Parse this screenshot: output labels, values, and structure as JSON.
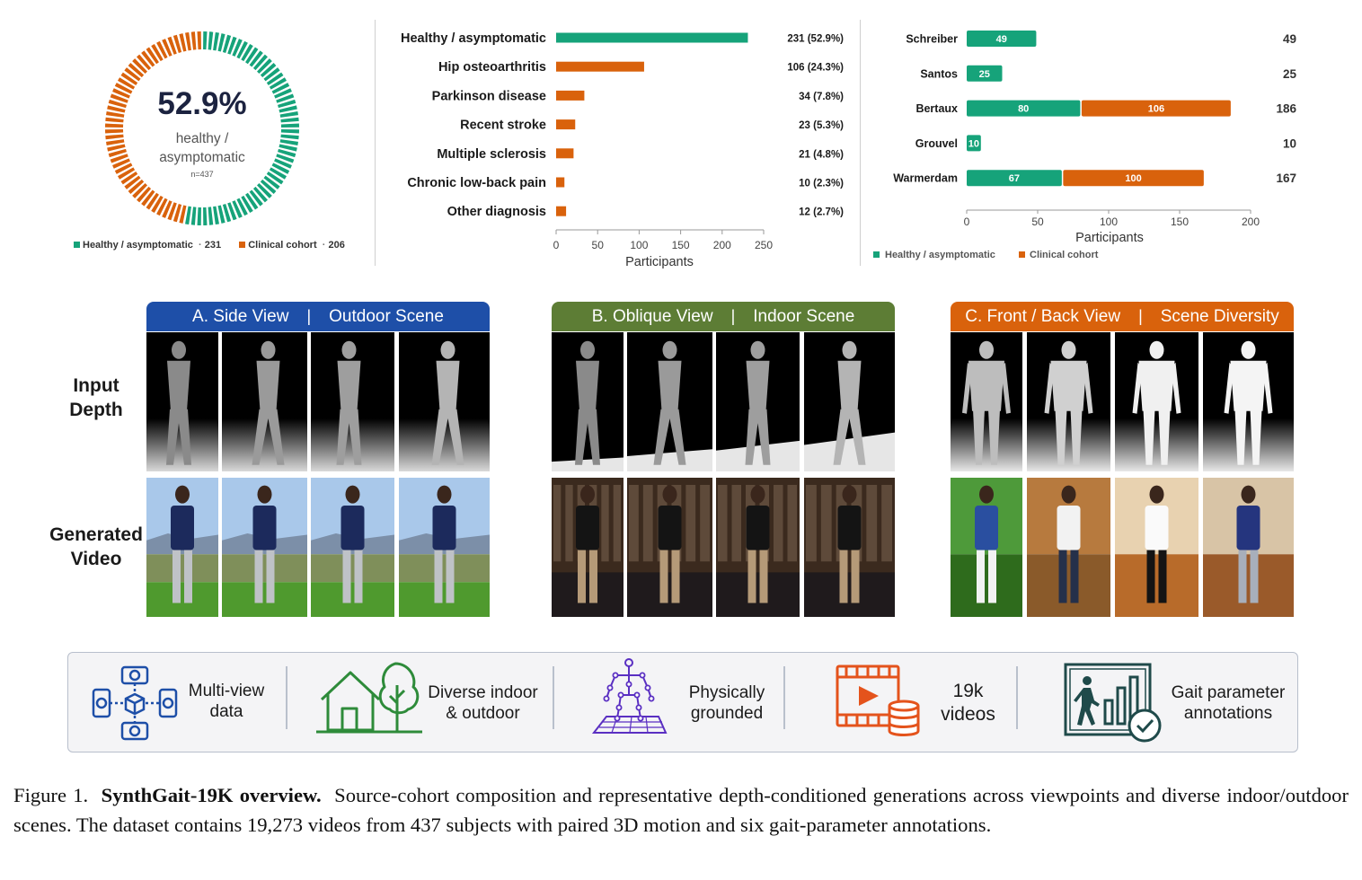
{
  "colors": {
    "healthy": "#16a37a",
    "clinical": "#d9620c",
    "blue": "#1e4fa8",
    "olive": "#5d7d35",
    "orange": "#d9620c"
  },
  "donut": {
    "percent": "52.9%",
    "label_line1": "healthy /",
    "label_line2": "asymptomatic",
    "n": "n=437",
    "healthy_count": 231,
    "clinical_count": 206
  },
  "donut_legend": [
    {
      "label": "Healthy / asymptomatic",
      "value": "231"
    },
    {
      "label": "Clinical cohort",
      "value": "206"
    }
  ],
  "chart_data": [
    {
      "type": "bar",
      "orientation": "horizontal",
      "categories": [
        "Healthy / asymptomatic",
        "Hip osteoarthritis",
        "Parkinson disease",
        "Recent stroke",
        "Multiple sclerosis",
        "Chronic low-back pain",
        "Other diagnosis"
      ],
      "values": [
        231,
        106,
        34,
        23,
        21,
        10,
        12
      ],
      "value_labels": [
        "231  (52.9%)",
        "106  (24.3%)",
        "34  (7.8%)",
        "23  (5.3%)",
        "21  (4.8%)",
        "10  (2.3%)",
        "12  (2.7%)"
      ],
      "xlabel": "Participants",
      "xlim": [
        0,
        250
      ],
      "xticks": [
        0,
        50,
        100,
        150,
        200,
        250
      ]
    },
    {
      "type": "bar",
      "orientation": "horizontal",
      "stacked": true,
      "categories": [
        "Schreiber",
        "Santos",
        "Bertaux",
        "Grouvel",
        "Warmerdam"
      ],
      "series": [
        {
          "name": "Healthy / asymptomatic",
          "values": [
            49,
            25,
            80,
            10,
            67
          ]
        },
        {
          "name": "Clinical cohort",
          "values": [
            0,
            0,
            106,
            0,
            100
          ]
        }
      ],
      "totals": [
        49,
        25,
        186,
        10,
        167
      ],
      "xlabel": "Participants",
      "xlim": [
        0,
        200
      ],
      "xticks": [
        0,
        50,
        100,
        150,
        200
      ],
      "legend": "bottom"
    }
  ],
  "panels": [
    {
      "left": "A. Side View",
      "sep": "|",
      "right": "Outdoor Scene"
    },
    {
      "left": "B. Oblique View",
      "sep": "|",
      "right": "Indoor Scene"
    },
    {
      "left": "C. Front / Back View",
      "sep": "|",
      "right": "Scene Diversity"
    }
  ],
  "row_labels": {
    "depth_1": "Input",
    "depth_2": "Depth",
    "video_1": "Generated",
    "video_2": "Video"
  },
  "features": [
    {
      "icon": "multi-view-camera-icon",
      "line1": "Multi-view",
      "line2": "data"
    },
    {
      "icon": "house-tree-icon",
      "line1": "Diverse indoor",
      "line2": "& outdoor"
    },
    {
      "icon": "skeleton-icon",
      "line1": "Physically",
      "line2": "grounded"
    },
    {
      "icon": "video-database-icon",
      "line1": "19k",
      "line2": "videos"
    },
    {
      "icon": "gait-annotation-icon",
      "line1": "Gait parameter",
      "line2": "annotations"
    }
  ],
  "caption": {
    "prefix": "Figure 1.",
    "title": "SynthGait-19K overview.",
    "text": "Source-cohort composition and representative depth-conditioned generations across viewpoints and diverse indoor/outdoor scenes. The dataset contains 19,273 videos from 437 subjects with paired 3D motion and six gait-parameter annotations."
  }
}
